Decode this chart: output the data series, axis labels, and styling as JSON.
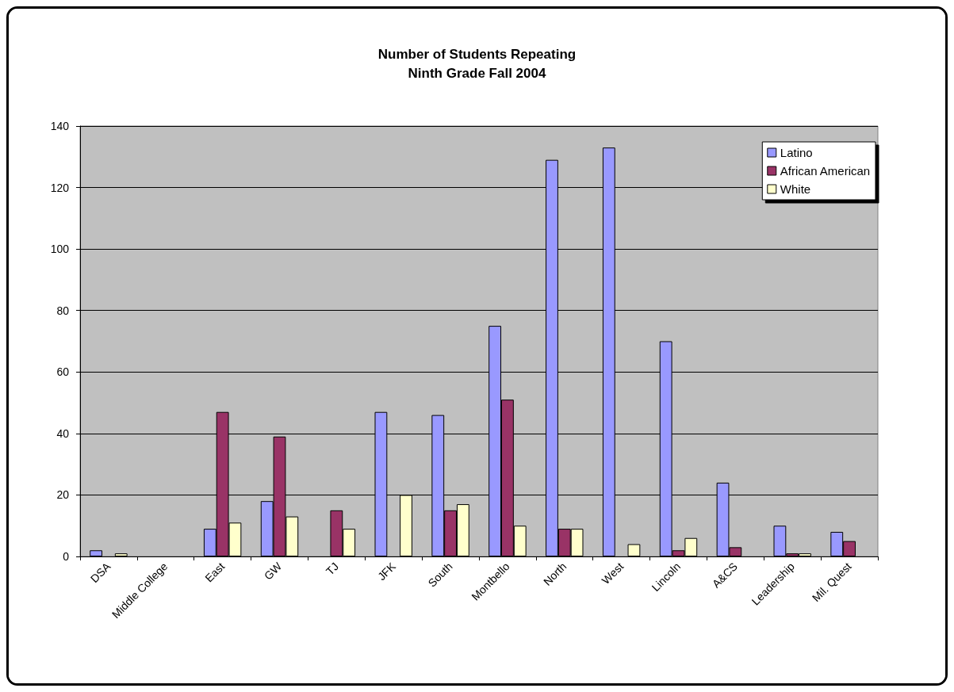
{
  "chart_data": {
    "type": "bar",
    "title": "Number of Students Repeating\nNinth Grade Fall 2004",
    "categories": [
      "DSA",
      "Middle College",
      "East",
      "GW",
      "TJ",
      "JFK",
      "South",
      "Montbello",
      "North",
      "West",
      "Lincoln",
      "A&CS",
      "Leadership",
      "Mil. Quest"
    ],
    "series": [
      {
        "name": "Latino",
        "color": "#9999ff",
        "values": [
          2,
          0,
          9,
          18,
          0,
          47,
          46,
          75,
          129,
          133,
          70,
          24,
          10,
          8
        ]
      },
      {
        "name": "African American",
        "color": "#993366",
        "values": [
          0,
          0,
          47,
          39,
          15,
          0,
          15,
          51,
          9,
          0,
          2,
          3,
          1,
          5
        ]
      },
      {
        "name": "White",
        "color": "#ffffcc",
        "values": [
          1,
          0,
          11,
          13,
          9,
          20,
          17,
          10,
          9,
          4,
          6,
          0,
          1,
          0
        ]
      }
    ],
    "ylim": [
      0,
      140
    ],
    "yticks": [
      0,
      20,
      40,
      60,
      80,
      100,
      120,
      140
    ],
    "grid": "y",
    "legend": "top right"
  }
}
